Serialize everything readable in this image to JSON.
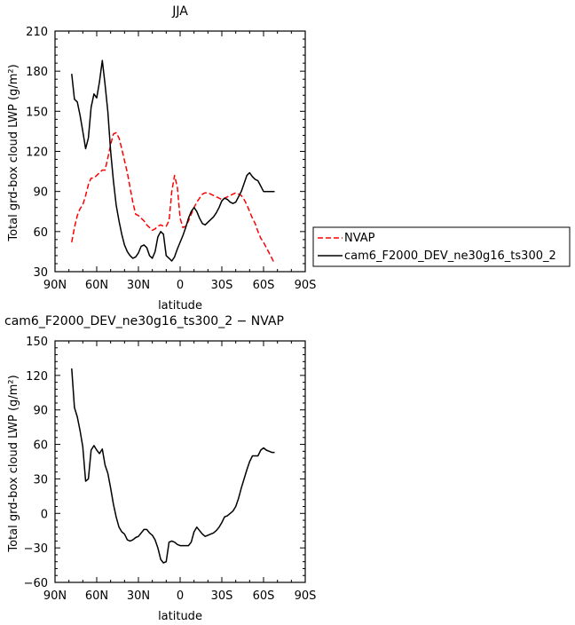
{
  "chart_data": [
    {
      "type": "line",
      "title": "JJA",
      "xlabel": "latitude",
      "ylabel": "Total grd-box cloud LWP (g/m²)",
      "xlim": [
        -90,
        90
      ],
      "ylim": [
        30,
        210
      ],
      "x_ticks": [
        -90,
        -60,
        -30,
        0,
        30,
        60,
        90
      ],
      "x_tick_labels": [
        "90N",
        "60N",
        "30N",
        "0",
        "30S",
        "60S",
        "90S"
      ],
      "y_ticks": [
        30,
        60,
        90,
        120,
        150,
        180,
        210
      ],
      "y_tick_labels": [
        "30",
        "60",
        "90",
        "120",
        "150",
        "180",
        "210"
      ],
      "legend_position": "right",
      "series": [
        {
          "name": "NVAP",
          "color": "#ff0000",
          "dash": "dashed",
          "x": [
            -78,
            -76,
            -74,
            -72,
            -70,
            -68,
            -66,
            -64,
            -62,
            -60,
            -58,
            -56,
            -54,
            -52,
            -50,
            -48,
            -46,
            -44,
            -42,
            -40,
            -38,
            -36,
            -34,
            -32,
            -30,
            -28,
            -26,
            -24,
            -22,
            -20,
            -18,
            -16,
            -14,
            -12,
            -10,
            -8,
            -6,
            -4,
            -2,
            0,
            2,
            4,
            6,
            8,
            10,
            12,
            14,
            16,
            18,
            20,
            22,
            24,
            26,
            28,
            30,
            32,
            34,
            36,
            38,
            40,
            42,
            44,
            46,
            48,
            50,
            52,
            54,
            56,
            58,
            60,
            62,
            64,
            66,
            68
          ],
          "y": [
            52,
            63,
            72,
            77,
            80,
            87,
            95,
            100,
            100,
            102,
            104,
            106,
            106,
            115,
            125,
            133,
            134,
            130,
            122,
            113,
            104,
            93,
            82,
            73,
            72,
            70,
            68,
            65,
            63,
            61,
            62,
            64,
            65,
            64,
            64,
            68,
            90,
            102,
            93,
            70,
            63,
            64,
            68,
            73,
            78,
            82,
            85,
            88,
            89,
            89,
            88,
            87,
            86,
            85,
            84,
            85,
            86,
            87,
            88,
            89,
            88,
            87,
            84,
            80,
            75,
            70,
            66,
            60,
            55,
            52,
            48,
            44,
            40,
            36
          ]
        },
        {
          "name": "cam6_F2000_DEV_ne30g16_ts300_2",
          "color": "#000000",
          "dash": "solid",
          "x": [
            -78,
            -76,
            -74,
            -72,
            -70,
            -68,
            -66,
            -64,
            -62,
            -60,
            -58,
            -56,
            -54,
            -52,
            -50,
            -48,
            -46,
            -44,
            -42,
            -40,
            -38,
            -36,
            -34,
            -32,
            -30,
            -28,
            -26,
            -24,
            -22,
            -20,
            -18,
            -16,
            -14,
            -12,
            -10,
            -8,
            -6,
            -4,
            -2,
            0,
            2,
            4,
            6,
            8,
            10,
            12,
            14,
            16,
            18,
            20,
            22,
            24,
            26,
            28,
            30,
            32,
            34,
            36,
            38,
            40,
            42,
            44,
            46,
            48,
            50,
            52,
            54,
            56,
            58,
            60,
            62,
            64,
            66,
            68
          ],
          "y": [
            178,
            159,
            157,
            147,
            135,
            122,
            130,
            153,
            163,
            160,
            172,
            188,
            170,
            150,
            120,
            98,
            80,
            68,
            58,
            50,
            45,
            42,
            40,
            41,
            44,
            49,
            50,
            48,
            42,
            40,
            45,
            56,
            60,
            58,
            42,
            40,
            38,
            41,
            47,
            52,
            57,
            63,
            70,
            75,
            78,
            75,
            70,
            66,
            65,
            67,
            69,
            71,
            74,
            78,
            83,
            85,
            84,
            82,
            81,
            82,
            86,
            90,
            96,
            102,
            104,
            101,
            99,
            98,
            94,
            90,
            90,
            90,
            90,
            90
          ]
        }
      ]
    },
    {
      "type": "line",
      "title": "cam6_F2000_DEV_ne30g16_ts300_2 − NVAP",
      "xlabel": "latitude",
      "ylabel": "Total grd-box cloud LWP (g/m²)",
      "xlim": [
        -90,
        90
      ],
      "ylim": [
        -60,
        150
      ],
      "x_ticks": [
        -90,
        -60,
        -30,
        0,
        30,
        60,
        90
      ],
      "x_tick_labels": [
        "90N",
        "60N",
        "30N",
        "0",
        "30S",
        "60S",
        "90S"
      ],
      "y_ticks": [
        -60,
        -30,
        0,
        30,
        60,
        90,
        120,
        150
      ],
      "y_tick_labels": [
        "−60",
        "−30",
        "0",
        "30",
        "60",
        "90",
        "120",
        "150"
      ],
      "series": [
        {
          "color": "#000000",
          "dash": "solid",
          "x": [
            -78,
            -76,
            -74,
            -72,
            -70,
            -68,
            -66,
            -64,
            -62,
            -60,
            -58,
            -56,
            -54,
            -52,
            -50,
            -48,
            -46,
            -44,
            -42,
            -40,
            -38,
            -36,
            -34,
            -32,
            -30,
            -28,
            -26,
            -24,
            -22,
            -20,
            -18,
            -16,
            -14,
            -12,
            -10,
            -8,
            -6,
            -4,
            -2,
            0,
            2,
            4,
            6,
            8,
            10,
            12,
            14,
            16,
            18,
            20,
            22,
            24,
            26,
            28,
            30,
            32,
            34,
            36,
            38,
            40,
            42,
            44,
            46,
            48,
            50,
            52,
            54,
            56,
            58,
            60,
            62,
            64,
            66,
            68
          ],
          "y": [
            126,
            92,
            84,
            72,
            58,
            28,
            30,
            55,
            59,
            55,
            52,
            56,
            42,
            35,
            22,
            8,
            -3,
            -12,
            -16,
            -18,
            -23,
            -24,
            -23,
            -21,
            -20,
            -17,
            -14,
            -14,
            -17,
            -19,
            -23,
            -30,
            -40,
            -43,
            -42,
            -25,
            -24,
            -25,
            -27,
            -28,
            -28,
            -28,
            -28,
            -25,
            -16,
            -12,
            -15,
            -18,
            -20,
            -19,
            -18,
            -17,
            -15,
            -12,
            -8,
            -3,
            -2,
            0,
            2,
            6,
            13,
            22,
            30,
            38,
            45,
            50,
            50,
            50,
            55,
            57,
            55,
            54,
            53,
            53
          ]
        }
      ]
    }
  ]
}
